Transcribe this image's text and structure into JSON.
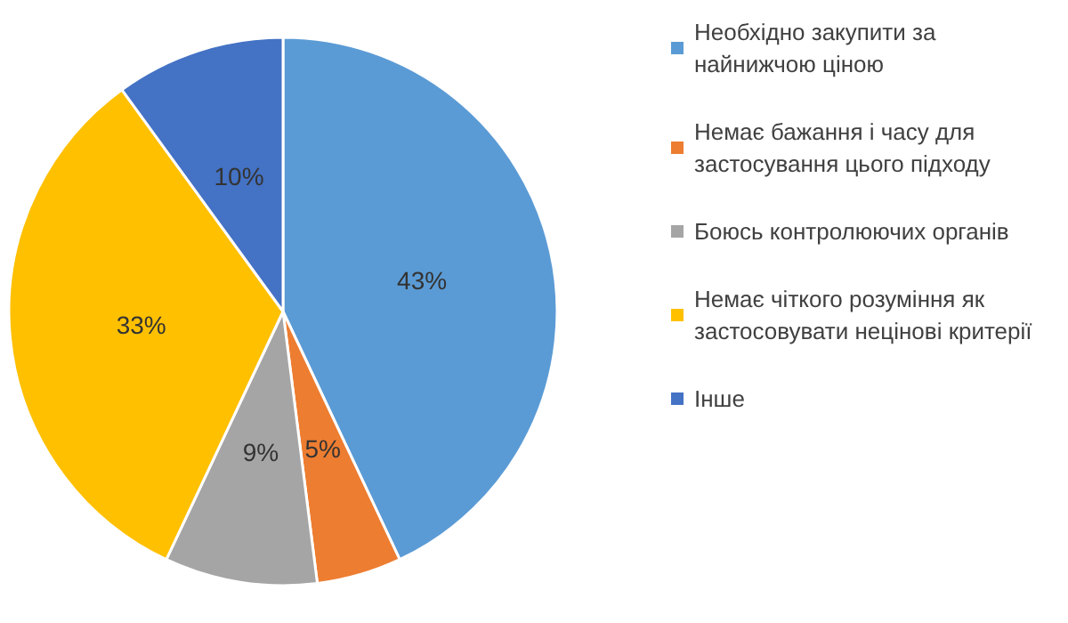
{
  "chart_data": {
    "type": "pie",
    "categories": [
      "Необхідно закупити за найнижчою ціною",
      "Немає бажання і часу для застосування цього підходу",
      "Боюсь контролюючих органів",
      "Немає чіткого розуміння як застосовувати нецінові критерії",
      "Інше"
    ],
    "values": [
      43,
      5,
      9,
      33,
      10
    ],
    "colors": [
      "#5b9bd5",
      "#ed7d31",
      "#a5a5a5",
      "#ffc000",
      "#4472c4"
    ],
    "value_labels": [
      "43%",
      "5%",
      "9%",
      "33%",
      "10%"
    ],
    "legend": "right"
  }
}
